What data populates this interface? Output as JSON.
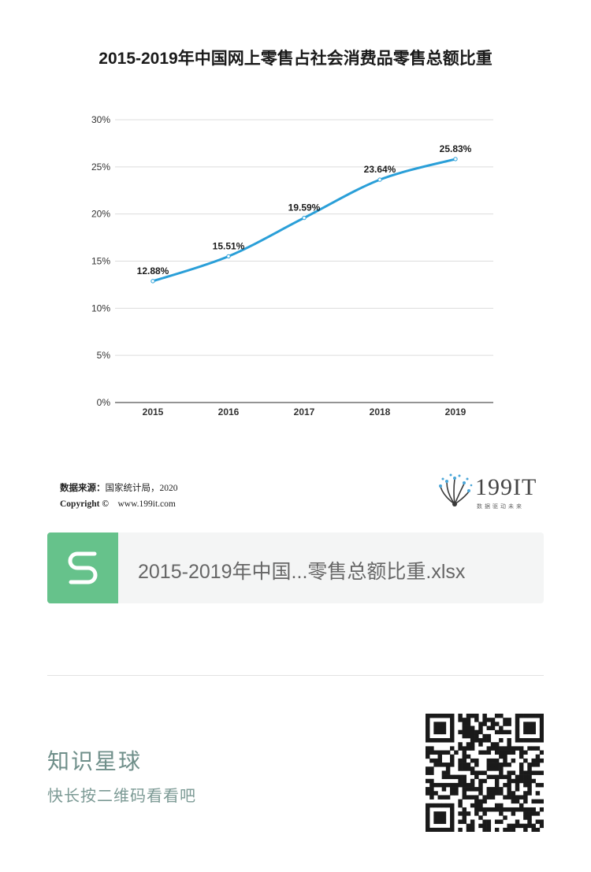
{
  "chart_data": {
    "type": "line",
    "title": "2015-2019年中国网上零售占社会消费品零售总额比重",
    "x": [
      "2015",
      "2016",
      "2017",
      "2018",
      "2019"
    ],
    "series": [
      {
        "values": [
          12.88,
          15.51,
          19.59,
          23.64,
          25.83
        ],
        "labels": [
          "12.88%",
          "15.51%",
          "19.59%",
          "23.64%",
          "25.83%"
        ]
      }
    ],
    "ylim": [
      0,
      30
    ],
    "yticks": [
      "0%",
      "5%",
      "10%",
      "15%",
      "20%",
      "25%",
      "30%"
    ],
    "xlabel": "",
    "ylabel": "",
    "grid": true,
    "line_color": "#2a9fd8"
  },
  "footer": {
    "source_label": "数据来源：",
    "source_value": "国家统计局，2020",
    "copyright_label": "Copyright ©",
    "copyright_url": "www.199it.com",
    "logo_text": "199IT",
    "logo_tagline": "数据驱动未来"
  },
  "attachment": {
    "icon": "spreadsheet-s-icon",
    "file_name": "2015-2019年中国...零售总额比重.xlsx",
    "icon_color": "#66c28b"
  },
  "promo": {
    "title": "知识星球",
    "subtitle": "快长按二维码看看吧",
    "qr_icon": "qr-code-icon"
  }
}
